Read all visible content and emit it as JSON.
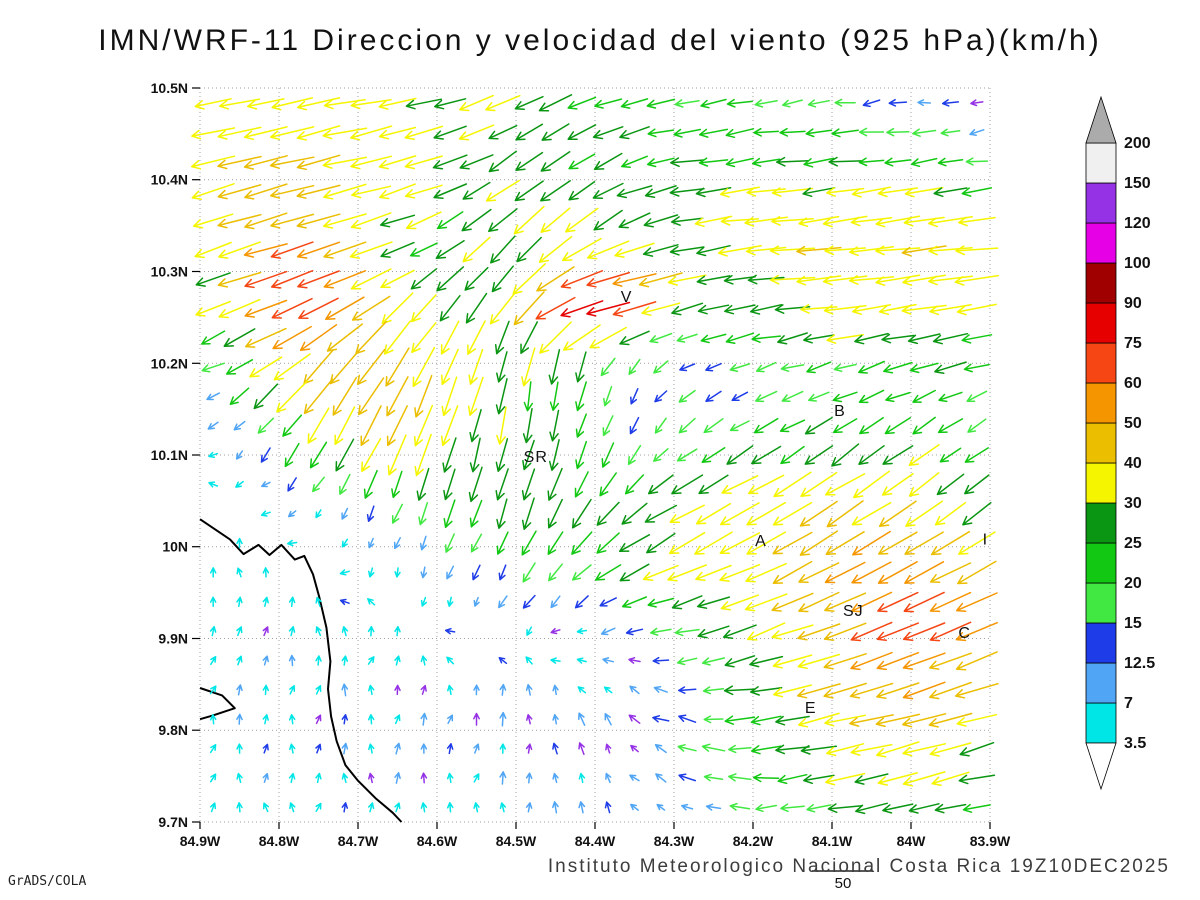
{
  "title": "IMN/WRF-11 Direccion y velocidad del viento (925 hPa)(km/h)",
  "credit": "GrADS/COLA",
  "footer": "Instituto Meteorologico Nacional Costa Rica 19Z10DEC2025",
  "ref_vector_label": "50",
  "chart_data": {
    "type": "vector_field",
    "title": "IMN/WRF-11 Direccion y velocidad del viento (925 hPa)(km/h)",
    "units": "km/h",
    "level": "925 hPa",
    "valid_time": "19Z10DEC2025",
    "x_axis": {
      "lon_min": -84.9,
      "lon_max": -83.9,
      "ticks": [
        "84.9W",
        "84.8W",
        "84.7W",
        "84.6W",
        "84.5W",
        "84.4W",
        "84.3W",
        "84.2W",
        "84.1W",
        "84W",
        "83.9W"
      ]
    },
    "y_axis": {
      "lat_min": 9.7,
      "lat_max": 10.5,
      "ticks": [
        "10.5N",
        "10.4N",
        "10.3N",
        "10.2N",
        "10.1N",
        "10N",
        "9.9N",
        "9.8N",
        "9.7N"
      ]
    },
    "grid_lines": {
      "style": "dotted",
      "lon_step": 0.1,
      "lat_step": 0.1
    },
    "colorbar": {
      "levels": [
        3.5,
        7,
        12.5,
        15,
        20,
        25,
        30,
        40,
        50,
        60,
        75,
        90,
        100,
        120,
        150,
        200
      ],
      "colors": [
        "#00E6E6",
        "#50A5F5",
        "#1E3CE8",
        "#41E841",
        "#12C812",
        "#0A9612",
        "#F5F500",
        "#EBBE00",
        "#F59600",
        "#F54614",
        "#E60000",
        "#A00000",
        "#E600E6",
        "#9632E6",
        "#F0F0F0"
      ],
      "above_color": "#ABABAB",
      "below_color": "#FFFFFF"
    },
    "cities": [
      {
        "label": "V",
        "lon": -84.36,
        "lat": 10.272
      },
      {
        "label": "B",
        "lon": -84.09,
        "lat": 10.148
      },
      {
        "label": "SR",
        "lon": -84.475,
        "lat": 10.098
      },
      {
        "label": "A",
        "lon": -84.19,
        "lat": 10.006
      },
      {
        "label": "SJ",
        "lon": -84.073,
        "lat": 9.93
      },
      {
        "label": "C",
        "lon": -83.932,
        "lat": 9.906
      },
      {
        "label": "E",
        "lon": -84.127,
        "lat": 9.824
      },
      {
        "label": "I",
        "lon": -83.906,
        "lat": 10.008
      }
    ],
    "coastlines": [
      [
        [
          -84.9,
          10.03
        ],
        [
          -84.862,
          10.008
        ],
        [
          -84.845,
          9.992
        ],
        [
          -84.826,
          10.002
        ],
        [
          -84.812,
          9.991
        ],
        [
          -84.797,
          10.002
        ],
        [
          -84.78,
          9.986
        ],
        [
          -84.768,
          9.99
        ],
        [
          -84.757,
          9.97
        ],
        [
          -84.749,
          9.945
        ],
        [
          -84.74,
          9.912
        ],
        [
          -84.735,
          9.875
        ],
        [
          -84.738,
          9.845
        ],
        [
          -84.734,
          9.815
        ],
        [
          -84.727,
          9.788
        ],
        [
          -84.716,
          9.762
        ],
        [
          -84.7,
          9.745
        ],
        [
          -84.678,
          9.726
        ],
        [
          -84.656,
          9.71
        ],
        [
          -84.645,
          9.7
        ]
      ],
      [
        [
          -84.9,
          9.846
        ],
        [
          -84.872,
          9.838
        ],
        [
          -84.856,
          9.824
        ],
        [
          -84.884,
          9.816
        ],
        [
          -84.9,
          9.812
        ]
      ]
    ],
    "wind_field": {
      "cols": 30,
      "rows": 25,
      "seed": 12345,
      "noise": 2.5,
      "blobs": [
        {
          "lon": -84.55,
          "lat": 10.52,
          "sx": 0.38,
          "sy": 0.14,
          "u": -24,
          "v": -3
        },
        {
          "lon": -84.83,
          "lat": 10.41,
          "sx": 0.14,
          "sy": 0.09,
          "u": -20,
          "v": -7
        },
        {
          "lon": -84.8,
          "lat": 10.26,
          "sx": 0.12,
          "sy": 0.09,
          "u": -20,
          "v": -7
        },
        {
          "lon": -84.77,
          "lat": 10.28,
          "sx": 0.05,
          "sy": 0.04,
          "u": -30,
          "v": -8
        },
        {
          "lon": -84.68,
          "lat": 10.16,
          "sx": 0.1,
          "sy": 0.08,
          "u": -14,
          "v": -34
        },
        {
          "lon": -84.47,
          "lat": 10.25,
          "sx": 0.09,
          "sy": 0.16,
          "u": 2,
          "v": -22
        },
        {
          "lon": -84.4,
          "lat": 10.27,
          "sx": 0.05,
          "sy": 0.03,
          "u": -65,
          "v": -6
        },
        {
          "lon": -84.72,
          "lat": 9.86,
          "sx": 0.28,
          "sy": 0.16,
          "u": 0.5,
          "v": 6.5
        },
        {
          "lon": -84.07,
          "lat": 10.02,
          "sx": 0.22,
          "sy": 0.1,
          "u": -22,
          "v": -20
        },
        {
          "lon": -84.02,
          "lat": 9.8,
          "sx": 0.22,
          "sy": 0.11,
          "u": -34,
          "v": -8
        },
        {
          "lon": -84.38,
          "lat": 9.8,
          "sx": 0.16,
          "sy": 0.1,
          "u": 5,
          "v": 8
        },
        {
          "lon": -83.95,
          "lat": 10.28,
          "sx": 0.18,
          "sy": 0.1,
          "u": -20,
          "v": -3
        },
        {
          "lon": -84.15,
          "lat": 10.33,
          "sx": 0.3,
          "sy": 0.08,
          "u": -20,
          "v": -2
        },
        {
          "lon": -83.98,
          "lat": 9.92,
          "sx": 0.08,
          "sy": 0.06,
          "u": -26,
          "v": -10
        },
        {
          "lon": -84.52,
          "lat": 10.02,
          "sx": 0.12,
          "sy": 0.09,
          "u": 0,
          "v": -13
        },
        {
          "lon": -84.28,
          "lat": 10.0,
          "sx": 0.18,
          "sy": 0.07,
          "u": -14,
          "v": -1
        }
      ]
    }
  }
}
